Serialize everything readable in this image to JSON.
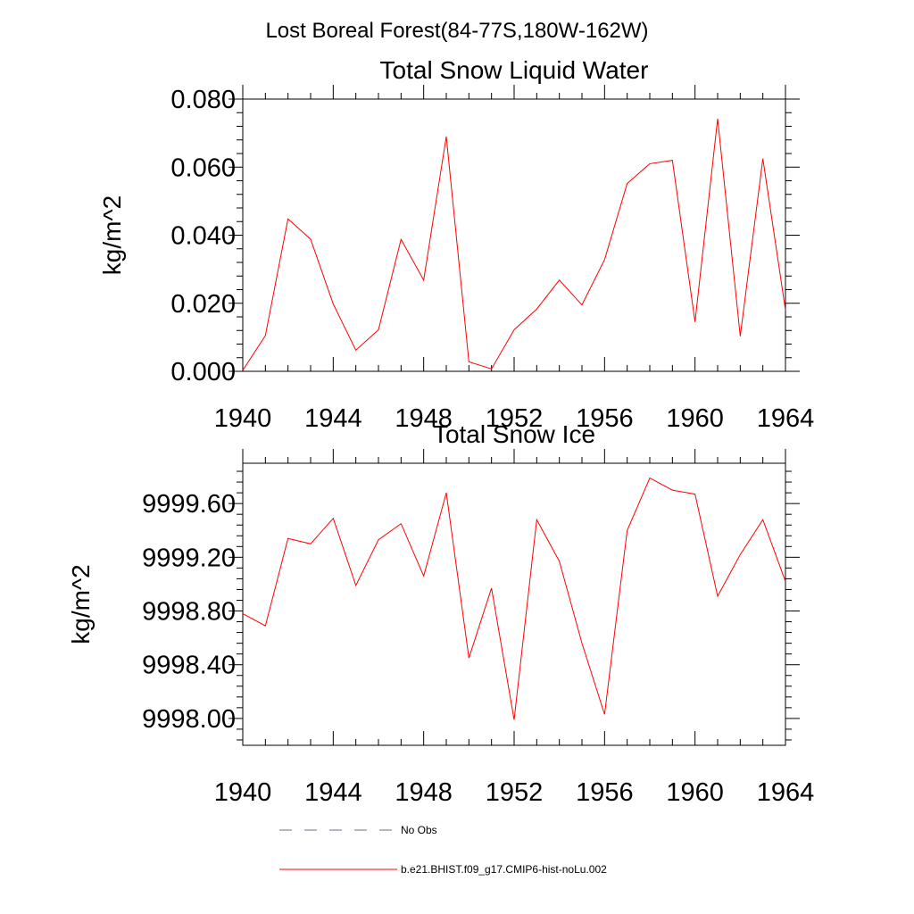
{
  "figure": {
    "suptitle": "Lost Boreal Forest(84-77S,180W-162W)",
    "legend": {
      "placement": "bottom",
      "entries": [
        {
          "label": "No Obs",
          "color": "#6b6f8a",
          "dash": "dashed"
        },
        {
          "label": "b.e21.BHIST.f09_g17.CMIP6-hist-noLu.002",
          "color": "#ff0000",
          "dash": "solid"
        }
      ]
    }
  },
  "chart_data": [
    {
      "type": "line",
      "title": "Total Snow Liquid Water",
      "xlabel": "",
      "ylabel": "kg/m^2",
      "xlim": [
        1940,
        1964
      ],
      "ylim": [
        0.0,
        0.08
      ],
      "xticks": [
        "1940",
        "1944",
        "1948",
        "1952",
        "1956",
        "1960",
        "1964"
      ],
      "yticks": [
        "0.000",
        "0.020",
        "0.040",
        "0.060",
        "0.080"
      ],
      "grid": false,
      "series": [
        {
          "name": "b.e21.BHIST.f09_g17.CMIP6-hist-noLu.002",
          "color": "#ff0000",
          "x": [
            1940,
            1941,
            1942,
            1943,
            1944,
            1945,
            1946,
            1947,
            1948,
            1949,
            1950,
            1951,
            1952,
            1953,
            1954,
            1955,
            1956,
            1957,
            1958,
            1959,
            1960,
            1961,
            1962,
            1963,
            1964
          ],
          "y": [
            0.0003,
            0.0105,
            0.0448,
            0.0388,
            0.0198,
            0.0062,
            0.0122,
            0.0388,
            0.0268,
            0.069,
            0.0028,
            0.0007,
            0.0122,
            0.0183,
            0.0268,
            0.0195,
            0.0328,
            0.0552,
            0.061,
            0.062,
            0.0145,
            0.0742,
            0.0103,
            0.0625,
            0.018
          ]
        }
      ]
    },
    {
      "type": "line",
      "title": "Total Snow Ice",
      "xlabel": "",
      "ylabel": "kg/m^2",
      "xlim": [
        1940,
        1964
      ],
      "ylim": [
        9997.8,
        9999.9
      ],
      "xticks": [
        "1940",
        "1944",
        "1948",
        "1952",
        "1956",
        "1960",
        "1964"
      ],
      "yticks": [
        "9998.00",
        "9998.40",
        "9998.80",
        "9999.20",
        "9999.60"
      ],
      "grid": false,
      "series": [
        {
          "name": "b.e21.BHIST.f09_g17.CMIP6-hist-noLu.002",
          "color": "#ff0000",
          "x": [
            1940,
            1941,
            1942,
            1943,
            1944,
            1945,
            1946,
            1947,
            1948,
            1949,
            1950,
            1951,
            1952,
            1953,
            1954,
            1955,
            1956,
            1957,
            1958,
            1959,
            1960,
            1961,
            1962,
            1963,
            1964
          ],
          "y": [
            9998.78,
            9998.69,
            9999.34,
            9999.3,
            9999.49,
            9998.99,
            9999.33,
            9999.45,
            9999.06,
            9999.68,
            9998.45,
            9998.97,
            9997.99,
            9999.48,
            9999.17,
            9998.56,
            9998.03,
            9999.4,
            9999.79,
            9999.7,
            9999.67,
            9998.91,
            9999.22,
            9999.48,
            9999.02
          ]
        }
      ]
    }
  ]
}
